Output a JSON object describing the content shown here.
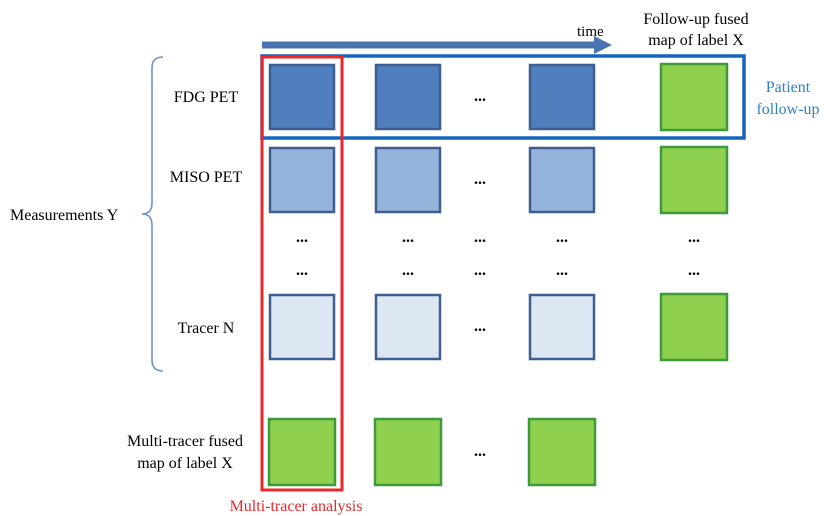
{
  "time_label": "time",
  "follow_up_label": [
    "Follow-up fused",
    "map of label X"
  ],
  "patient_label": [
    "Patient",
    "follow-up"
  ],
  "measurements_label": "Measurements Y",
  "rows": [
    {
      "label": "FDG PET",
      "cells": [
        "box",
        "box",
        "dots",
        "box",
        "green"
      ]
    },
    {
      "label": "MISO PET",
      "cells": [
        "box",
        "box",
        "dots",
        "box",
        "green"
      ]
    },
    {
      "label": "",
      "cells": [
        "dots",
        "dots",
        "dots",
        "dots",
        "dots"
      ]
    },
    {
      "label": "",
      "cells": [
        "dots",
        "dots",
        "dots",
        "dots",
        "dots"
      ]
    },
    {
      "label": "Tracer N",
      "cells": [
        "box",
        "box",
        "dots",
        "box",
        "green"
      ]
    }
  ],
  "row_colors": [
    "#4f7fbe",
    "#96b3db",
    "",
    "",
    "#dde7f4"
  ],
  "fused_row": {
    "label": [
      "Multi-tracer fused",
      "map of label X"
    ],
    "cells": [
      "green",
      "green",
      "dots",
      "green"
    ]
  },
  "dots_text": "...",
  "multi_tracer_label": "Multi-tracer analysis",
  "colors": {
    "green_fill": "#8fd14f",
    "green_stroke": "#3f9a3c",
    "box_stroke": "#3d5e8f",
    "red": "#e8282b",
    "blue": "#1565c0",
    "arrow": "#4a74b0",
    "brace": "#6f94c4",
    "patient_text": "#2f80c9"
  }
}
